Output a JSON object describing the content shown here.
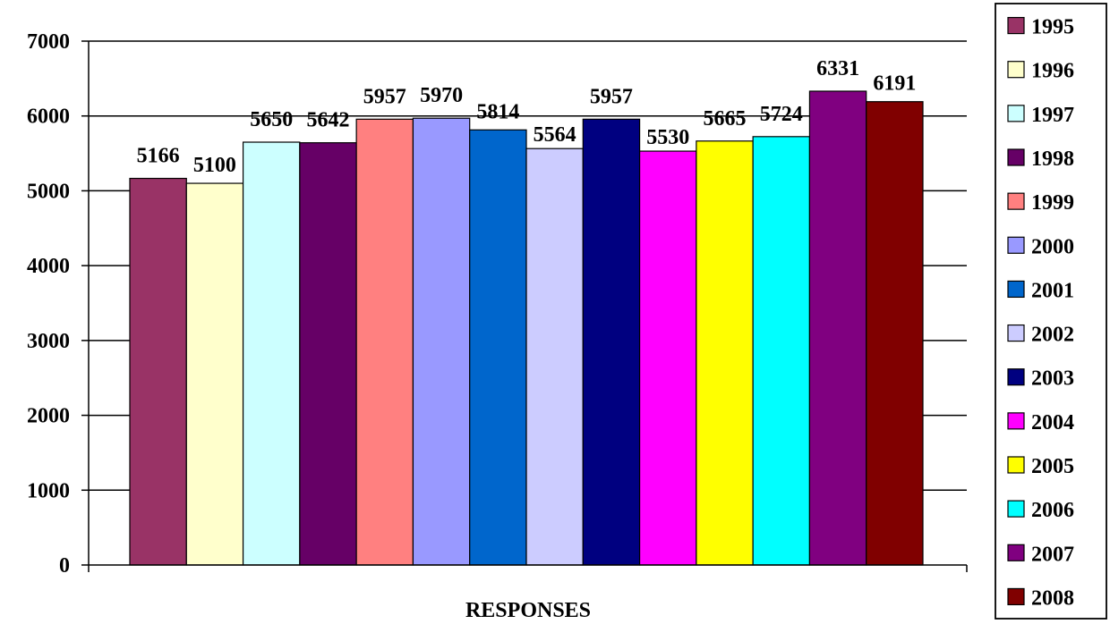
{
  "chart_data": {
    "type": "bar",
    "xlabel": "RESPONSES",
    "ylabel": "",
    "ylim": [
      0,
      7000
    ],
    "yticks": [
      0,
      1000,
      2000,
      3000,
      4000,
      5000,
      6000,
      7000
    ],
    "grid": true,
    "legend_position": "right",
    "series": [
      {
        "name": "1995",
        "value": 5166,
        "color": "#993366"
      },
      {
        "name": "1996",
        "value": 5100,
        "color": "#FFFFCC"
      },
      {
        "name": "1997",
        "value": 5650,
        "color": "#CCFFFF"
      },
      {
        "name": "1998",
        "value": 5642,
        "color": "#660066"
      },
      {
        "name": "1999",
        "value": 5957,
        "color": "#FF8080"
      },
      {
        "name": "2000",
        "value": 5970,
        "color": "#9999FF"
      },
      {
        "name": "2001",
        "value": 5814,
        "color": "#0066CC"
      },
      {
        "name": "2002",
        "value": 5564,
        "color": "#CCCCFF"
      },
      {
        "name": "2003",
        "value": 5957,
        "color": "#000080"
      },
      {
        "name": "2004",
        "value": 5530,
        "color": "#FF00FF"
      },
      {
        "name": "2005",
        "value": 5665,
        "color": "#FFFF00"
      },
      {
        "name": "2006",
        "value": 5724,
        "color": "#00FFFF"
      },
      {
        "name": "2007",
        "value": 6331,
        "color": "#800080"
      },
      {
        "name": "2008",
        "value": 6191,
        "color": "#800000"
      }
    ]
  }
}
